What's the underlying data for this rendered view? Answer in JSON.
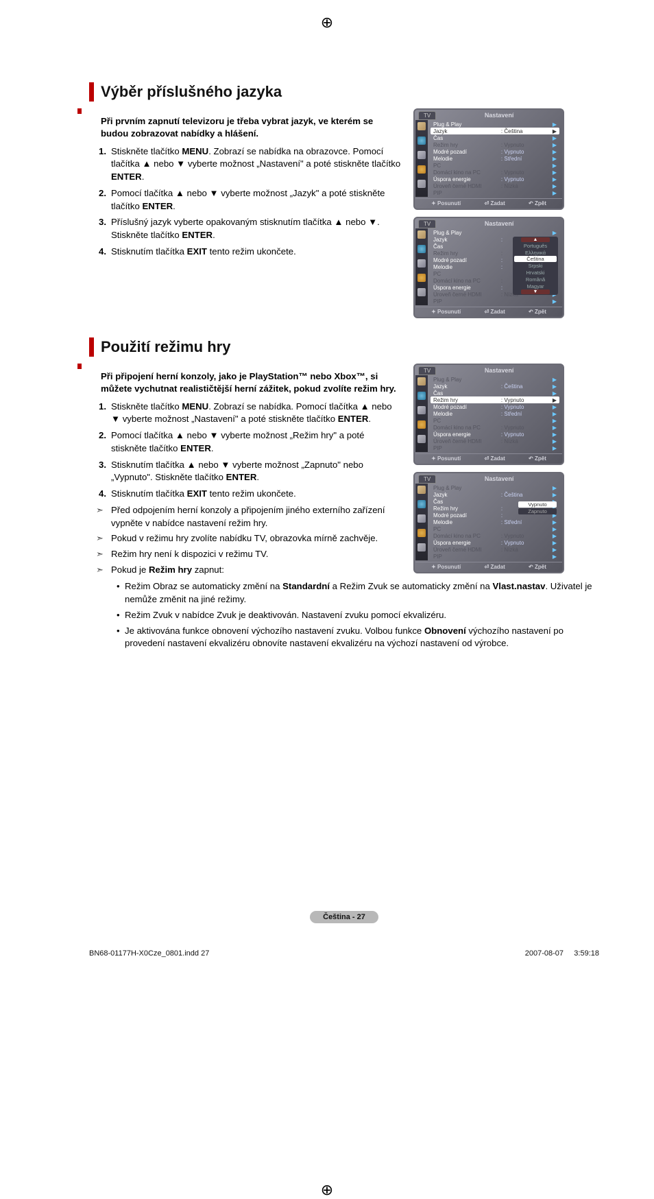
{
  "regmark": "⊕",
  "section1": {
    "title": "Výběr příslušného jazyka",
    "intro": "Při prvním zapnutí televizoru je třeba vybrat jazyk, ve kterém se budou zobrazovat nabídky a hlášení.",
    "steps": [
      {
        "n": "1.",
        "t": "Stiskněte tlačítko <b>MENU</b>. Zobrazí se nabídka na obrazovce. Pomocí tlačítka ▲ nebo ▼ vyberte možnost „Nastavení\" a poté stiskněte tlačítko <b>ENTER</b>."
      },
      {
        "n": "2.",
        "t": "Pomocí tlačítka ▲ nebo ▼ vyberte možnost „Jazyk\" a poté stiskněte tlačítko <b>ENTER</b>."
      },
      {
        "n": "3.",
        "t": "Příslušný jazyk vyberte opakovaným stisknutím tlačítka ▲ nebo ▼. Stiskněte tlačítko <b>ENTER</b>."
      },
      {
        "n": "4.",
        "t": "Stisknutím tlačítka <b>EXIT</b> tento režim ukončete."
      }
    ]
  },
  "section2": {
    "title": "Použití režimu hry",
    "intro": "Při připojení herní konzoly, jako je PlayStation™ nebo Xbox™, si můžete vychutnat realističtější herní zážitek, pokud zvolíte režim hry.",
    "steps": [
      {
        "n": "1.",
        "t": "Stiskněte tlačítko <b>MENU</b>. Zobrazí se nabídka. Pomocí tlačítka ▲ nebo ▼ vyberte možnost „Nastavení\" a poté stiskněte tlačítko <b>ENTER</b>."
      },
      {
        "n": "2.",
        "t": "Pomocí tlačítka ▲ nebo ▼ vyberte možnost „Režim hry\" a poté stiskněte tlačítko <b>ENTER</b>."
      },
      {
        "n": "3.",
        "t": "Stisknutím tlačítka ▲ nebo ▼ vyberte možnost „Zapnuto\" nebo „Vypnuto\". Stiskněte tlačítko <b>ENTER</b>."
      },
      {
        "n": "4.",
        "t": "Stisknutím tlačítka <b>EXIT</b> tento režim ukončete."
      }
    ],
    "arrows": [
      "Před odpojením herní konzoly a připojením jiného externího zařízení vypněte v nabídce nastavení režim hry.",
      "Pokud v režimu hry zvolíte nabídku TV, obrazovka mírně zachvěje.",
      "Režim hry není k dispozici v režimu TV.",
      "Pokud je <b>Režim hry</b> zapnut:"
    ],
    "dots": [
      "Režim Obraz se automaticky změní na <b>Standardní</b> a Režim Zvuk se automaticky změní na <b>Vlast.nastav</b>. Uživatel je nemůže změnit na jiné režimy.",
      "Režim Zvuk v nabídce Zvuk je deaktivován. Nastavení zvuku pomocí ekvalizéru.",
      "Je aktivována funkce obnovení výchozího nastavení zvuku. Volbou funkce <b>Obnovení</b> výchozího nastavení po provedení nastavení ekvalizéru obnovíte nastavení ekvalizéru na výchozí nastavení od výrobce."
    ]
  },
  "tv": {
    "tab": "TV",
    "title": "Nastavení",
    "foot": {
      "move": "✦ Posunutí",
      "enter": "⏎ Zadat",
      "back": "↶ Zpět"
    },
    "menu1": {
      "rows": [
        {
          "lbl": "Plug & Play",
          "val": "",
          "cls": ""
        },
        {
          "lbl": "Jazyk",
          "val": ": Čeština",
          "cls": "sel"
        },
        {
          "lbl": "Čas",
          "val": "",
          "cls": ""
        },
        {
          "lbl": "Režim hry",
          "val": ": Vypnuto",
          "cls": "dim"
        },
        {
          "lbl": "Modré pozadí",
          "val": ": Vypnuto",
          "cls": ""
        },
        {
          "lbl": "Melodie",
          "val": ": Střední",
          "cls": ""
        },
        {
          "lbl": "PC",
          "val": "",
          "cls": "dim"
        },
        {
          "lbl": "Domácí kino na PC",
          "val": ": Vypnuto",
          "cls": "dim"
        },
        {
          "lbl": "Úspora energie",
          "val": ": Vypnuto",
          "cls": ""
        },
        {
          "lbl": "Úroveň černé HDMI",
          "val": ": Nízká",
          "cls": "dim"
        },
        {
          "lbl": "PIP",
          "val": "",
          "cls": "dim"
        }
      ]
    },
    "menu2": {
      "rows": [
        {
          "lbl": "Plug & Play",
          "val": "",
          "cls": ""
        },
        {
          "lbl": "Jazyk",
          "val": ":",
          "cls": ""
        },
        {
          "lbl": "Čas",
          "val": "",
          "cls": ""
        },
        {
          "lbl": "Režim hry",
          "val": ":",
          "cls": "dim"
        },
        {
          "lbl": "Modré pozadí",
          "val": ":",
          "cls": ""
        },
        {
          "lbl": "Melodie",
          "val": ":",
          "cls": ""
        },
        {
          "lbl": "PC",
          "val": "",
          "cls": "dim"
        },
        {
          "lbl": "Domácí kino na PC",
          "val": ":",
          "cls": "dim"
        },
        {
          "lbl": "Úspora energie",
          "val": ":",
          "cls": ""
        },
        {
          "lbl": "Úroveň černé HDMI",
          "val": ": Nízká",
          "cls": "dim"
        },
        {
          "lbl": "PIP",
          "val": "",
          "cls": "dim"
        }
      ],
      "popup": [
        "▲",
        "Português",
        "Ελληνικά",
        "Čeština",
        "Srpski",
        "Hrvatski",
        "Română",
        "Magyar",
        "▼"
      ]
    },
    "menu3": {
      "rows": [
        {
          "lbl": "Plug & Play",
          "val": "",
          "cls": "dim"
        },
        {
          "lbl": "Jazyk",
          "val": ": Čeština",
          "cls": ""
        },
        {
          "lbl": "Čas",
          "val": "",
          "cls": ""
        },
        {
          "lbl": "Režim hry",
          "val": ": Vypnuto",
          "cls": "sel"
        },
        {
          "lbl": "Modré pozadí",
          "val": ": Vypnuto",
          "cls": ""
        },
        {
          "lbl": "Melodie",
          "val": ": Střední",
          "cls": ""
        },
        {
          "lbl": "PC",
          "val": "",
          "cls": "dim"
        },
        {
          "lbl": "Domácí kino na PC",
          "val": ": Vypnuto",
          "cls": "dim"
        },
        {
          "lbl": "Úspora energie",
          "val": ": Vypnuto",
          "cls": ""
        },
        {
          "lbl": "Úroveň černé HDMI",
          "val": ": Nízká",
          "cls": "dim"
        },
        {
          "lbl": "PIP",
          "val": "",
          "cls": "dim"
        }
      ]
    },
    "menu4": {
      "rows": [
        {
          "lbl": "Plug & Play",
          "val": "",
          "cls": "dim"
        },
        {
          "lbl": "Jazyk",
          "val": ": Čeština",
          "cls": ""
        },
        {
          "lbl": "Čas",
          "val": "",
          "cls": ""
        },
        {
          "lbl": "Režim hry",
          "val": ":",
          "cls": ""
        },
        {
          "lbl": "Modré pozadí",
          "val": ":",
          "cls": ""
        },
        {
          "lbl": "Melodie",
          "val": ": Střední",
          "cls": ""
        },
        {
          "lbl": "PC",
          "val": "",
          "cls": "dim"
        },
        {
          "lbl": "Domácí kino na PC",
          "val": ": Vypnuto",
          "cls": "dim"
        },
        {
          "lbl": "Úspora energie",
          "val": ": Vypnuto",
          "cls": ""
        },
        {
          "lbl": "Úroveň černé HDMI",
          "val": ": Nízká",
          "cls": "dim"
        },
        {
          "lbl": "PIP",
          "val": "",
          "cls": "dim"
        }
      ],
      "popup": [
        "Vypnuto",
        "Zapnuto"
      ]
    }
  },
  "pageLabel": "Čeština - 27",
  "footer": {
    "left": "BN68-01177H-X0Cze_0801.indd   27",
    "right": "2007-08-07       3:59:18"
  }
}
